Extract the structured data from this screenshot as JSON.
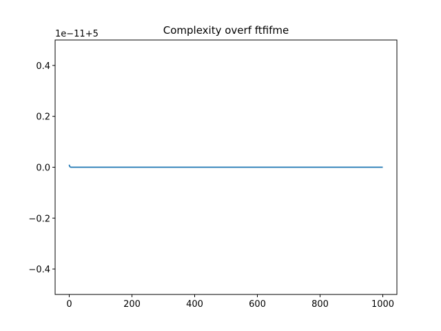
{
  "chart_data": {
    "type": "line",
    "title": "Complexity overf ftfifme",
    "xlabel": "",
    "ylabel": "",
    "offset_text": "1e−11+5",
    "xlim": [
      -45,
      1045
    ],
    "ylim": [
      -0.5,
      0.5
    ],
    "x_ticks": [
      0,
      200,
      400,
      600,
      800,
      1000
    ],
    "x_tick_labels": [
      "0",
      "200",
      "400",
      "600",
      "800",
      "1000"
    ],
    "y_ticks": [
      0.4,
      0.2,
      0.0,
      -0.2,
      -0.4
    ],
    "y_tick_labels": [
      "0.4",
      "0.2",
      "0.0",
      "−0.2",
      "−0.4"
    ],
    "grid": false,
    "series": [
      {
        "color": "#1f77b4",
        "x": [
          0,
          1,
          2,
          5,
          10,
          100,
          200,
          300,
          400,
          500,
          600,
          700,
          800,
          900,
          1000
        ],
        "y": [
          0.01,
          0.005,
          0.002,
          0.0,
          0.0,
          0.0,
          0.0,
          0.0,
          0.0,
          0.0,
          0.0,
          0.0,
          0.0,
          0.0,
          0.0
        ]
      }
    ]
  }
}
